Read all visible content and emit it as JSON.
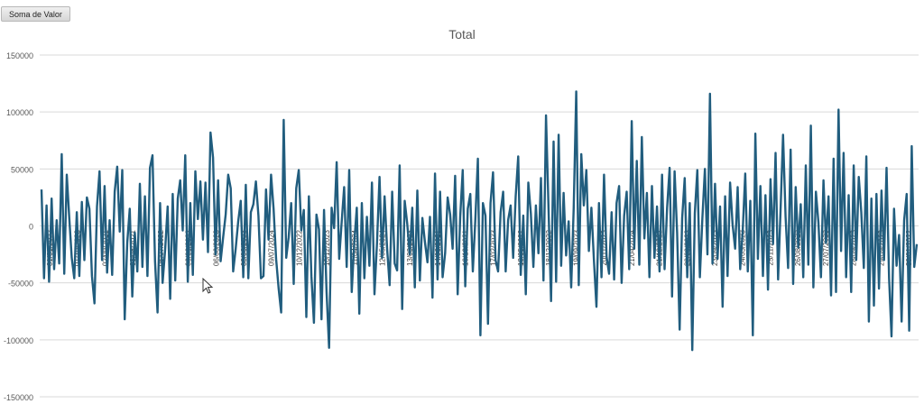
{
  "field_button": {
    "label": "Soma de Valor"
  },
  "chart_data": {
    "type": "line",
    "title": "Total",
    "xlabel": "",
    "ylabel": "",
    "ylim": [
      -150000,
      150000
    ],
    "yticks": [
      150000,
      100000,
      50000,
      0,
      -50000,
      -100000,
      -150000
    ],
    "ytick_labels": [
      "150000",
      "100000",
      "50000",
      "0",
      "-50000",
      "-100000",
      "-150000"
    ],
    "grid": true,
    "legend": "none",
    "line_color": "#215d7e",
    "gridline_color": "#d9d9d9",
    "x_tick_labels": [
      "01/01/2022",
      "01/10/2023",
      "02/09/2021",
      "03/08/2021",
      "05/07/2022",
      "06/06/2022",
      "06/06/2023",
      "08/06/2023",
      "09/07/2024",
      "10/12/2022",
      "10/12/2023",
      "11/04/2024",
      "12/05/2024",
      "13/03/2023",
      "14/03/2021",
      "16/10/2021",
      "17/02/2023",
      "18/05/2022",
      "18/12/2022",
      "19/09/2023",
      "20/11/2023",
      "21/04/2024",
      "21/12/2022",
      "22/09/2023",
      "23/09/2023",
      "24/03/2023",
      "25/11/2023",
      "26/08/2023",
      "27/07/2023",
      "28/09/2023",
      "29/09/2023",
      "30/01/2022"
    ],
    "series": [
      {
        "values": [
          32000,
          -46000,
          18000,
          -49000,
          24000,
          -38000,
          5000,
          -33000,
          63000,
          -42000,
          45000,
          8000,
          -28000,
          -46000,
          12000,
          -44000,
          21000,
          -30000,
          25000,
          15000,
          -44000,
          -68000,
          17000,
          48000,
          -30000,
          35000,
          -41000,
          5000,
          -43000,
          30000,
          52000,
          -5000,
          49000,
          -82000,
          -15000,
          15000,
          -62000,
          -6000,
          -40000,
          37000,
          -36000,
          26000,
          -44000,
          51000,
          62000,
          -31000,
          -76000,
          20000,
          -50000,
          -21000,
          17000,
          -64000,
          28000,
          -48000,
          24000,
          40000,
          -4000,
          62000,
          -49000,
          20000,
          -43000,
          48000,
          6000,
          39000,
          -12000,
          38000,
          -23000,
          82000,
          60000,
          -25000,
          40000,
          -31000,
          -10000,
          10000,
          45000,
          33000,
          -40000,
          -20000,
          4000,
          22000,
          -45000,
          36000,
          -46000,
          12000,
          19000,
          39000,
          9000,
          -46000,
          -44000,
          32000,
          -12000,
          45000,
          15000,
          -29000,
          -55000,
          -76000,
          93000,
          -28000,
          -10000,
          20000,
          -51000,
          33000,
          49000,
          -4000,
          14000,
          -80000,
          26000,
          -44000,
          -85000,
          10000,
          -3000,
          -82000,
          14000,
          -58000,
          -107000,
          16000,
          -2000,
          56000,
          -29000,
          4000,
          34000,
          -36000,
          49000,
          -58000,
          -15000,
          16000,
          -77000,
          20000,
          -46000,
          8000,
          -35000,
          38000,
          -60000,
          -15000,
          43000,
          -28000,
          26000,
          -20000,
          -52000,
          30000,
          -33000,
          -39000,
          53000,
          -73000,
          22000,
          2000,
          -25000,
          16000,
          -54000,
          31000,
          -48000,
          7000,
          -14000,
          -32000,
          8000,
          -63000,
          46000,
          -47000,
          30000,
          -45000,
          -24000,
          25000,
          10000,
          -20000,
          44000,
          -60000,
          8000,
          49000,
          -53000,
          15000,
          28000,
          -40000,
          6000,
          59000,
          -96000,
          20000,
          9000,
          -86000,
          20000,
          47000,
          -30000,
          -40000,
          12000,
          30000,
          -40000,
          5000,
          18000,
          -28000,
          26000,
          61000,
          -43000,
          9000,
          -60000,
          38000,
          11000,
          -36000,
          18000,
          -24000,
          42000,
          -48000,
          97000,
          15000,
          -66000,
          74000,
          -49000,
          80000,
          -35000,
          29000,
          -26000,
          4000,
          -54000,
          16000,
          118000,
          -52000,
          63000,
          18000,
          49000,
          -22000,
          16000,
          -30000,
          -71000,
          20000,
          -45000,
          45000,
          -27000,
          -42000,
          12000,
          -47000,
          20000,
          35000,
          -50000,
          9000,
          30000,
          -38000,
          92000,
          -20000,
          57000,
          -34000,
          78000,
          -11000,
          29000,
          -45000,
          35000,
          -28000,
          17000,
          -40000,
          45000,
          -38000,
          16000,
          51000,
          -62000,
          48000,
          -6000,
          -91000,
          7000,
          42000,
          -45000,
          20000,
          -109000,
          11000,
          49000,
          -45000,
          7000,
          50000,
          -25000,
          116000,
          -33000,
          37000,
          -29000,
          17000,
          -71000,
          26000,
          -44000,
          38000,
          1000,
          -20000,
          34000,
          -38000,
          -4000,
          46000,
          -40000,
          22000,
          -96000,
          81000,
          -29000,
          35000,
          -44000,
          27000,
          -56000,
          41000,
          -16000,
          64000,
          -47000,
          13000,
          80000,
          8000,
          -37000,
          67000,
          -51000,
          34000,
          -19000,
          19000,
          -45000,
          53000,
          -34000,
          88000,
          -54000,
          30000,
          3000,
          -45000,
          40000,
          -15000,
          26000,
          -61000,
          59000,
          -58000,
          102000,
          -22000,
          64000,
          -45000,
          27000,
          -58000,
          53000,
          -30000,
          43000,
          12000,
          -37000,
          61000,
          -84000,
          24000,
          -70000,
          28000,
          -55000,
          31000,
          -30000,
          51000,
          -46000,
          -97000,
          15000,
          -35000,
          -8000,
          -84000,
          5000,
          28000,
          -92000,
          70000,
          -36000,
          -16000
        ]
      }
    ]
  }
}
